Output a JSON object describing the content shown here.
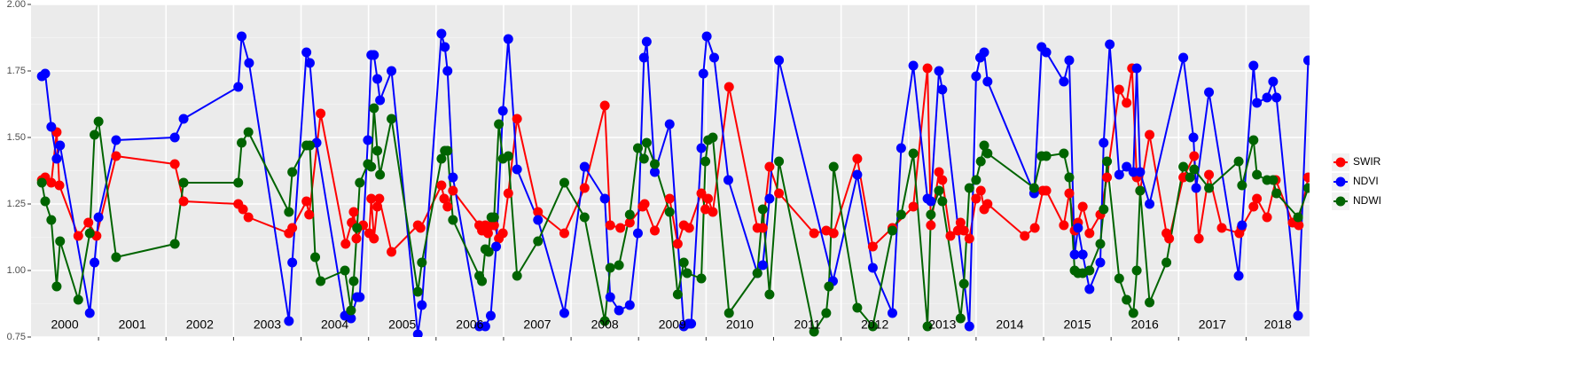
{
  "chart_data": {
    "type": "line",
    "year_labels": [
      "2000",
      "2001",
      "2002",
      "2003",
      "2004",
      "2005",
      "2006",
      "2007",
      "2008",
      "2009",
      "2010",
      "2011",
      "2012",
      "2013",
      "2014",
      "2015",
      "2016",
      "2017",
      "2018"
    ],
    "xlim": [
      2000,
      2018.94
    ],
    "xticks": [
      2001,
      2002,
      2003,
      2004,
      2005,
      2006,
      2007,
      2008,
      2009,
      2010,
      2011,
      2012,
      2013,
      2014,
      2015,
      2016,
      2017,
      2018
    ],
    "ylim": [
      0.75,
      2.0
    ],
    "yticks": [
      {
        "value": 0.75,
        "label": "0.75"
      },
      {
        "value": 1,
        "label": "1.00"
      },
      {
        "value": 1.25,
        "label": "1.25"
      },
      {
        "value": 1.5,
        "label": "1.50"
      },
      {
        "value": 1.75,
        "label": "1.75"
      },
      {
        "value": 2,
        "label": "2.00"
      }
    ],
    "grid": true,
    "legend": "right",
    "series": [
      {
        "name": "SWIR",
        "color": "#ff0000",
        "x": [
          2000.16,
          2000.21,
          2000.3,
          2000.38,
          2000.42,
          2000.7,
          2000.85,
          2000.97,
          2001.26,
          2002.13,
          2002.26,
          2003.07,
          2003.14,
          2003.22,
          2003.82,
          2003.87,
          2004.08,
          2004.12,
          2004.29,
          2004.66,
          2004.75,
          2004.78,
          2004.82,
          2004.92,
          2005.01,
          2005.04,
          2005.08,
          2005.13,
          2005.16,
          2005.34,
          2005.73,
          2005.77,
          2006.08,
          2006.12,
          2006.17,
          2006.25,
          2006.64,
          2006.68,
          2006.73,
          2006.77,
          2006.82,
          2006.86,
          2006.93,
          2006.99,
          2007.07,
          2007.2,
          2007.51,
          2007.9,
          2008.2,
          2008.5,
          2008.58,
          2008.73,
          2008.87,
          2009.06,
          2009.09,
          2009.24,
          2009.46,
          2009.58,
          2009.67,
          2009.75,
          2009.93,
          2009.99,
          2010.03,
          2010.1,
          2010.34,
          2010.76,
          2010.84,
          2010.94,
          2011.08,
          2011.6,
          2011.78,
          2011.89,
          2012.24,
          2012.47,
          2012.76,
          2013.07,
          2013.28,
          2013.33,
          2013.45,
          2013.5,
          2013.62,
          2013.73,
          2013.77,
          2013.82,
          2013.9,
          2014.0,
          2014.07,
          2014.12,
          2014.17,
          2014.72,
          2014.87,
          2014.99,
          2015.04,
          2015.3,
          2015.38,
          2015.46,
          2015.51,
          2015.58,
          2015.68,
          2015.84,
          2015.94,
          2016.12,
          2016.23,
          2016.31,
          2016.38,
          2016.43,
          2016.57,
          2016.82,
          2016.86,
          2017.07,
          2017.23,
          2017.3,
          2017.45,
          2017.64,
          2017.9,
          2017.93,
          2018.11,
          2018.16,
          2018.31,
          2018.44,
          2018.69,
          2018.78,
          2018.92
        ],
        "values": [
          1.34,
          1.35,
          1.33,
          1.52,
          1.32,
          1.13,
          1.18,
          1.13,
          1.43,
          1.4,
          1.26,
          1.25,
          1.23,
          1.2,
          1.14,
          1.16,
          1.26,
          1.21,
          1.59,
          1.1,
          1.18,
          1.22,
          1.12,
          1.17,
          1.14,
          1.27,
          1.12,
          1.24,
          1.27,
          1.07,
          1.17,
          1.16,
          1.32,
          1.27,
          1.24,
          1.3,
          1.17,
          1.15,
          1.17,
          1.14,
          1.17,
          1.17,
          1.12,
          1.14,
          1.29,
          1.57,
          1.22,
          1.14,
          1.31,
          1.62,
          1.17,
          1.16,
          1.18,
          1.24,
          1.25,
          1.15,
          1.27,
          1.1,
          1.17,
          1.16,
          1.29,
          1.23,
          1.27,
          1.22,
          1.69,
          1.16,
          1.16,
          1.39,
          1.29,
          1.14,
          1.15,
          1.14,
          1.42,
          1.09,
          1.16,
          1.24,
          1.76,
          1.17,
          1.37,
          1.34,
          1.13,
          1.15,
          1.18,
          1.15,
          1.12,
          1.27,
          1.3,
          1.23,
          1.25,
          1.13,
          1.16,
          1.3,
          1.3,
          1.17,
          1.29,
          1.15,
          1.18,
          1.24,
          1.14,
          1.21,
          1.35,
          1.68,
          1.63,
          1.76,
          1.35,
          1.3,
          1.51,
          1.14,
          1.12,
          1.35,
          1.43,
          1.12,
          1.36,
          1.16,
          1.14,
          1.16,
          1.24,
          1.27,
          1.2,
          1.34,
          1.18,
          1.17,
          1.35
        ]
      },
      {
        "name": "NDVI",
        "color": "#0000ff",
        "x": [
          2000.16,
          2000.21,
          2000.3,
          2000.38,
          2000.43,
          2000.87,
          2000.94,
          2001.0,
          2001.26,
          2002.13,
          2002.26,
          2003.07,
          2003.12,
          2003.23,
          2003.82,
          2003.87,
          2004.08,
          2004.13,
          2004.23,
          2004.65,
          2004.74,
          2004.83,
          2004.87,
          2004.99,
          2005.04,
          2005.08,
          2005.13,
          2005.17,
          2005.34,
          2005.73,
          2005.79,
          2006.08,
          2006.13,
          2006.17,
          2006.25,
          2006.64,
          2006.73,
          2006.81,
          2006.89,
          2006.99,
          2007.07,
          2007.2,
          2007.51,
          2007.9,
          2008.2,
          2008.5,
          2008.58,
          2008.71,
          2008.87,
          2008.99,
          2009.08,
          2009.12,
          2009.24,
          2009.46,
          2009.67,
          2009.74,
          2009.78,
          2009.93,
          2009.96,
          2010.01,
          2010.12,
          2010.33,
          2010.76,
          2010.84,
          2010.94,
          2011.08,
          2011.88,
          2012.24,
          2012.47,
          2012.76,
          2012.89,
          2013.07,
          2013.28,
          2013.33,
          2013.45,
          2013.5,
          2013.9,
          2014.0,
          2014.06,
          2014.12,
          2014.17,
          2014.86,
          2014.97,
          2015.04,
          2015.3,
          2015.38,
          2015.46,
          2015.51,
          2015.58,
          2015.68,
          2015.84,
          2015.89,
          2015.98,
          2016.12,
          2016.23,
          2016.33,
          2016.38,
          2016.43,
          2016.57,
          2017.07,
          2017.22,
          2017.26,
          2017.45,
          2017.89,
          2017.94,
          2018.11,
          2018.16,
          2018.31,
          2018.4,
          2018.45,
          2018.77,
          2018.92
        ],
        "values": [
          1.73,
          1.74,
          1.54,
          1.42,
          1.47,
          0.84,
          1.03,
          1.2,
          1.49,
          1.5,
          1.57,
          1.69,
          1.88,
          1.78,
          0.81,
          1.03,
          1.82,
          1.78,
          1.48,
          0.83,
          0.82,
          0.9,
          0.9,
          1.49,
          1.81,
          1.81,
          1.72,
          1.64,
          1.75,
          0.76,
          0.87,
          1.89,
          1.84,
          1.75,
          1.35,
          0.79,
          0.79,
          0.83,
          1.09,
          1.6,
          1.87,
          1.38,
          1.19,
          0.84,
          1.39,
          1.27,
          0.9,
          0.85,
          0.87,
          1.14,
          1.8,
          1.86,
          1.37,
          1.55,
          0.79,
          0.8,
          0.8,
          1.46,
          1.74,
          1.88,
          1.8,
          1.34,
          0.99,
          1.02,
          1.27,
          1.79,
          0.96,
          1.36,
          1.01,
          0.84,
          1.46,
          1.77,
          1.27,
          1.26,
          1.75,
          1.68,
          0.79,
          1.73,
          1.8,
          1.82,
          1.71,
          1.29,
          1.84,
          1.82,
          1.71,
          1.79,
          1.06,
          1.16,
          1.06,
          0.93,
          1.03,
          1.48,
          1.85,
          1.36,
          1.39,
          1.37,
          1.76,
          1.37,
          1.25,
          1.8,
          1.5,
          1.31,
          1.67,
          0.98,
          1.17,
          1.77,
          1.63,
          1.65,
          1.71,
          1.65,
          0.83,
          1.79
        ]
      },
      {
        "name": "NDWI",
        "color": "#006400",
        "x": [
          2000.16,
          2000.21,
          2000.3,
          2000.38,
          2000.43,
          2000.7,
          2000.87,
          2000.94,
          2001.0,
          2001.26,
          2002.13,
          2002.26,
          2003.07,
          2003.12,
          2003.22,
          2003.82,
          2003.87,
          2004.08,
          2004.13,
          2004.21,
          2004.29,
          2004.65,
          2004.74,
          2004.78,
          2004.83,
          2004.87,
          2004.99,
          2005.04,
          2005.08,
          2005.13,
          2005.17,
          2005.34,
          2005.73,
          2005.79,
          2006.08,
          2006.13,
          2006.17,
          2006.25,
          2006.64,
          2006.68,
          2006.73,
          2006.78,
          2006.82,
          2006.86,
          2006.93,
          2006.99,
          2007.07,
          2007.2,
          2007.51,
          2007.9,
          2008.2,
          2008.5,
          2008.58,
          2008.71,
          2008.87,
          2008.99,
          2009.08,
          2009.12,
          2009.24,
          2009.46,
          2009.58,
          2009.67,
          2009.72,
          2009.93,
          2009.99,
          2010.03,
          2010.1,
          2010.34,
          2010.76,
          2010.84,
          2010.94,
          2011.08,
          2011.6,
          2011.78,
          2011.82,
          2011.89,
          2012.24,
          2012.47,
          2012.76,
          2012.89,
          2013.07,
          2013.28,
          2013.33,
          2013.45,
          2013.5,
          2013.77,
          2013.82,
          2013.9,
          2014.0,
          2014.07,
          2014.12,
          2014.17,
          2014.86,
          2014.97,
          2015.04,
          2015.3,
          2015.38,
          2015.46,
          2015.51,
          2015.58,
          2015.68,
          2015.84,
          2015.89,
          2015.94,
          2016.12,
          2016.23,
          2016.33,
          2016.38,
          2016.43,
          2016.57,
          2016.82,
          2017.07,
          2017.17,
          2017.23,
          2017.45,
          2017.89,
          2017.94,
          2018.11,
          2018.16,
          2018.31,
          2018.4,
          2018.45,
          2018.77,
          2018.92
        ],
        "values": [
          1.33,
          1.26,
          1.19,
          0.94,
          1.11,
          0.89,
          1.14,
          1.51,
          1.56,
          1.05,
          1.1,
          1.33,
          1.33,
          1.48,
          1.52,
          1.22,
          1.37,
          1.47,
          1.47,
          1.05,
          0.96,
          1.0,
          0.85,
          0.96,
          1.16,
          1.33,
          1.4,
          1.39,
          1.61,
          1.45,
          1.36,
          1.57,
          0.92,
          1.03,
          1.42,
          1.45,
          1.45,
          1.19,
          0.98,
          0.96,
          1.08,
          1.07,
          1.2,
          1.2,
          1.55,
          1.42,
          1.43,
          0.98,
          1.11,
          1.33,
          1.2,
          0.81,
          1.01,
          1.02,
          1.21,
          1.46,
          1.42,
          1.48,
          1.4,
          1.22,
          0.91,
          1.03,
          0.99,
          0.97,
          1.41,
          1.49,
          1.5,
          0.84,
          0.99,
          1.23,
          0.91,
          1.41,
          0.77,
          0.84,
          0.94,
          1.39,
          0.86,
          0.79,
          1.15,
          1.21,
          1.44,
          0.79,
          1.21,
          1.3,
          1.26,
          0.82,
          0.95,
          1.31,
          1.34,
          1.41,
          1.47,
          1.44,
          1.31,
          1.43,
          1.43,
          1.44,
          1.35,
          1.0,
          0.99,
          0.99,
          1.0,
          1.1,
          1.23,
          1.41,
          0.97,
          0.89,
          0.84,
          1.0,
          1.3,
          0.88,
          1.03,
          1.39,
          1.35,
          1.38,
          1.31,
          1.41,
          1.32,
          1.49,
          1.36,
          1.34,
          1.34,
          1.29,
          1.2,
          1.31
        ]
      }
    ]
  }
}
